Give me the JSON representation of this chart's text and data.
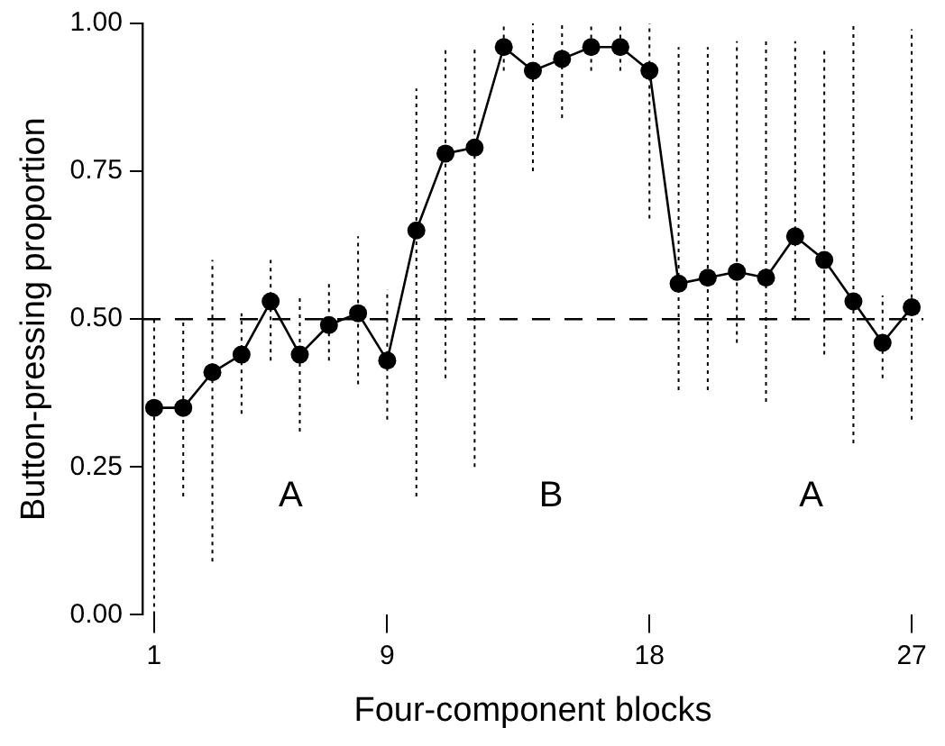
{
  "chart_data": {
    "type": "line",
    "xlabel": "Four-component blocks",
    "ylabel": "Button-pressing proportion",
    "x": [
      1,
      2,
      3,
      4,
      5,
      6,
      7,
      8,
      9,
      10,
      11,
      12,
      13,
      14,
      15,
      16,
      17,
      18,
      19,
      20,
      21,
      22,
      23,
      24,
      25,
      26,
      27
    ],
    "series": [
      {
        "color": "#000000",
        "marker": "circle",
        "line_style": "solid",
        "values": [
          0.35,
          0.35,
          0.41,
          0.44,
          0.53,
          0.44,
          0.49,
          0.51,
          0.43,
          0.65,
          0.78,
          0.79,
          0.96,
          0.92,
          0.94,
          0.96,
          0.96,
          0.92,
          0.56,
          0.57,
          0.58,
          0.57,
          0.64,
          0.6,
          0.53,
          0.46,
          0.52
        ],
        "errors": [
          [
            0.0,
            0.5
          ],
          [
            0.2,
            0.5
          ],
          [
            0.09,
            0.6
          ],
          [
            0.34,
            0.51
          ],
          [
            0.43,
            0.6
          ],
          [
            0.31,
            0.54
          ],
          [
            0.43,
            0.56
          ],
          [
            0.39,
            0.64
          ],
          [
            0.33,
            0.55
          ],
          [
            0.2,
            0.89
          ],
          [
            0.4,
            0.96
          ],
          [
            0.25,
            0.96
          ],
          [
            0.92,
            1.0
          ],
          [
            0.75,
            1.0
          ],
          [
            0.84,
            1.0
          ],
          [
            0.92,
            1.0
          ],
          [
            0.92,
            1.0
          ],
          [
            0.67,
            1.0
          ],
          [
            0.38,
            0.96
          ],
          [
            0.38,
            0.96
          ],
          [
            0.46,
            0.97
          ],
          [
            0.36,
            0.97
          ],
          [
            0.5,
            0.97
          ],
          [
            0.44,
            0.96
          ],
          [
            0.29,
            1.0
          ],
          [
            0.4,
            0.54
          ],
          [
            0.33,
            0.99
          ]
        ]
      }
    ],
    "xlim": [
      0.6,
      27.4
    ],
    "xticks": [
      1,
      9,
      18,
      27
    ],
    "ylim": [
      0,
      1
    ],
    "yticks": [
      {
        "value": 0,
        "label": "0.00"
      },
      {
        "value": 0.25,
        "label": "0.25"
      },
      {
        "value": 0.5,
        "label": "0.50"
      },
      {
        "value": 0.75,
        "label": "0.75"
      },
      {
        "value": 1,
        "label": "1.00"
      }
    ],
    "ref_lines": [
      {
        "axis": "y",
        "value": 0.5,
        "line_style": "dashed",
        "color": "#000000"
      }
    ],
    "annotations": [
      "A",
      "B",
      "A"
    ],
    "grid": false,
    "legend": false
  }
}
